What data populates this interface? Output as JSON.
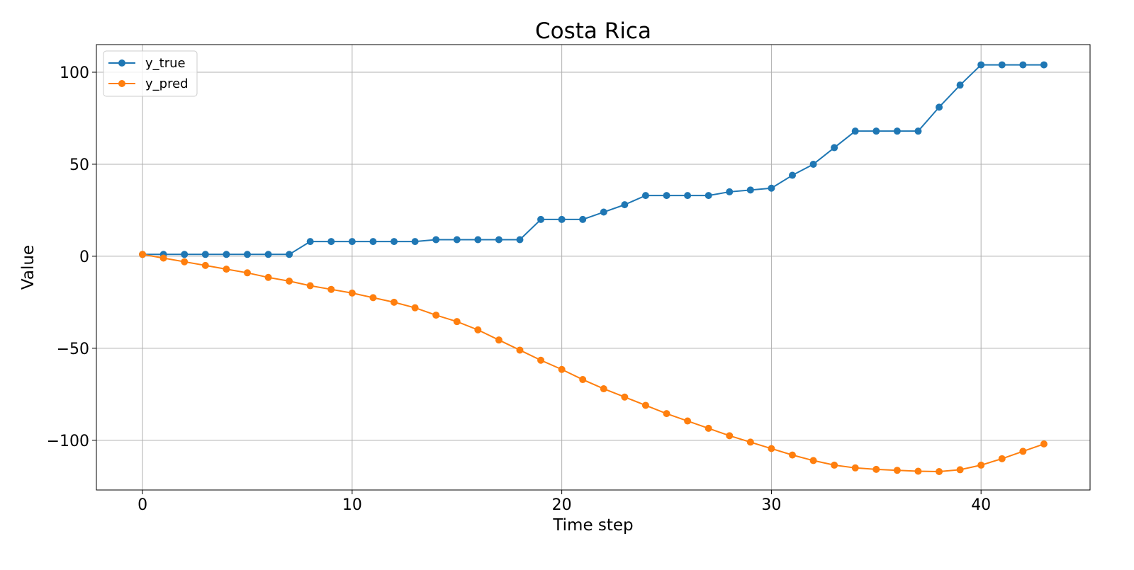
{
  "chart_data": {
    "type": "line",
    "title": "Costa Rica",
    "xlabel": "Time step",
    "ylabel": "Value",
    "xlim": [
      -2.2,
      45.2
    ],
    "ylim": [
      -127,
      115
    ],
    "xticks": [
      0,
      10,
      20,
      30,
      40
    ],
    "yticks": [
      100,
      50,
      0,
      -50,
      -100
    ],
    "xtick_labels": [
      "0",
      "10",
      "20",
      "30",
      "40"
    ],
    "ytick_labels": [
      "100",
      "50",
      "0",
      "−50",
      "−100"
    ],
    "grid": true,
    "legend_position": "top-left",
    "x": [
      0,
      1,
      2,
      3,
      4,
      5,
      6,
      7,
      8,
      9,
      10,
      11,
      12,
      13,
      14,
      15,
      16,
      17,
      18,
      19,
      20,
      21,
      22,
      23,
      24,
      25,
      26,
      27,
      28,
      29,
      30,
      31,
      32,
      33,
      34,
      35,
      36,
      37,
      38,
      39,
      40,
      41,
      42,
      43
    ],
    "series": [
      {
        "name": "y_true",
        "color": "#1f77b4",
        "values": [
          1,
          1,
          1,
          1,
          1,
          1,
          1,
          1,
          8,
          8,
          8,
          8,
          8,
          8,
          9,
          9,
          9,
          9,
          9,
          20,
          20,
          20,
          24,
          28,
          33,
          33,
          33,
          33,
          35,
          36,
          37,
          44,
          50,
          59,
          68,
          68,
          68,
          68,
          81,
          93,
          104,
          104,
          104,
          104
        ]
      },
      {
        "name": "y_pred",
        "color": "#ff7f0e",
        "values": [
          1,
          -1,
          -3,
          -5,
          -7,
          -9,
          -11.5,
          -13.5,
          -16,
          -18,
          -20,
          -22.5,
          -25,
          -28,
          -32,
          -35.5,
          -40,
          -45.5,
          -51,
          -56.5,
          -61.5,
          -67,
          -72,
          -76.5,
          -81,
          -85.5,
          -89.5,
          -93.5,
          -97.5,
          -101,
          -104.5,
          -108,
          -111,
          -113.5,
          -115,
          -115.8,
          -116.3,
          -116.8,
          -117,
          -116,
          -113.5,
          -110,
          -106,
          -102
        ]
      }
    ]
  }
}
